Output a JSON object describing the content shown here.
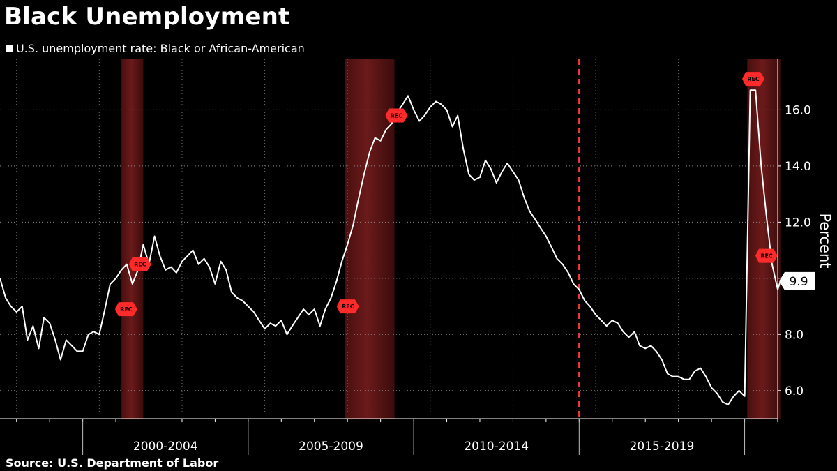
{
  "title": "Black Unemployment",
  "source": "Source: U.S. Department of Labor",
  "chart_data": {
    "type": "line",
    "title": "Black Unemployment",
    "ylabel": "Percent",
    "ylim": [
      5.0,
      17.8
    ],
    "xlim": [
      1997.5,
      2021.0
    ],
    "y_ticks": [
      6.0,
      8.0,
      10.0,
      12.0,
      14.0,
      16.0
    ],
    "y_tick_labels": [
      "6.0",
      "8.0",
      "",
      "12.0",
      "14.0",
      "16.0"
    ],
    "x_tick_years": [
      2000,
      2005,
      2010,
      2015,
      2020
    ],
    "x_period_labels": [
      {
        "label": "2000-2004",
        "x": 2002.5
      },
      {
        "label": "2005-2009",
        "x": 2007.5
      },
      {
        "label": "2010-2014",
        "x": 2012.5
      },
      {
        "label": "2015-2019",
        "x": 2017.5
      }
    ],
    "grid": true,
    "legend": "top-left",
    "colors": {
      "line": "#ffffff",
      "recession": "#b22222",
      "marker": "#ff2a2a",
      "dashed_line": "#ff3333"
    },
    "recessions": [
      {
        "start": 2001.17,
        "end": 2001.83
      },
      {
        "start": 2007.92,
        "end": 2009.42
      },
      {
        "start": 2020.08,
        "end": 2021.08
      }
    ],
    "rec_markers": [
      {
        "x": 2001.25,
        "y": 8.9,
        "label": "REC"
      },
      {
        "x": 2001.67,
        "y": 10.5,
        "label": "REC"
      },
      {
        "x": 2007.95,
        "y": 9.0,
        "label": "REC"
      },
      {
        "x": 2009.42,
        "y": 15.8,
        "label": "REC"
      },
      {
        "x": 2020.2,
        "y": 17.1,
        "label": "REC"
      },
      {
        "x": 2021.0,
        "y": 10.8,
        "label": "REC"
      }
    ],
    "vertical_marker": {
      "x": 2015.0,
      "style": "dashed"
    },
    "last_value": {
      "label": "9.9",
      "value": 9.9
    },
    "series": [
      {
        "name": "U.S. unemployment rate: Black or African-American",
        "x": [
          1997.5,
          1997.67,
          1997.83,
          1998.0,
          1998.17,
          1998.33,
          1998.5,
          1998.67,
          1998.83,
          1999.0,
          1999.17,
          1999.33,
          1999.5,
          1999.67,
          1999.83,
          2000.0,
          2000.17,
          2000.33,
          2000.5,
          2000.67,
          2000.83,
          2001.0,
          2001.17,
          2001.33,
          2001.5,
          2001.67,
          2001.83,
          2002.0,
          2002.17,
          2002.33,
          2002.5,
          2002.67,
          2002.83,
          2003.0,
          2003.17,
          2003.33,
          2003.5,
          2003.67,
          2003.83,
          2004.0,
          2004.17,
          2004.33,
          2004.5,
          2004.67,
          2004.83,
          2005.0,
          2005.17,
          2005.33,
          2005.5,
          2005.67,
          2005.83,
          2006.0,
          2006.17,
          2006.33,
          2006.5,
          2006.67,
          2006.83,
          2007.0,
          2007.17,
          2007.33,
          2007.5,
          2007.67,
          2007.83,
          2008.0,
          2008.17,
          2008.33,
          2008.5,
          2008.67,
          2008.83,
          2009.0,
          2009.17,
          2009.33,
          2009.5,
          2009.67,
          2009.83,
          2010.0,
          2010.17,
          2010.33,
          2010.5,
          2010.67,
          2010.83,
          2011.0,
          2011.17,
          2011.33,
          2011.5,
          2011.67,
          2011.83,
          2012.0,
          2012.17,
          2012.33,
          2012.5,
          2012.67,
          2012.83,
          2013.0,
          2013.17,
          2013.33,
          2013.5,
          2013.67,
          2013.83,
          2014.0,
          2014.17,
          2014.33,
          2014.5,
          2014.67,
          2014.83,
          2015.0,
          2015.17,
          2015.33,
          2015.5,
          2015.67,
          2015.83,
          2016.0,
          2016.17,
          2016.33,
          2016.5,
          2016.67,
          2016.83,
          2017.0,
          2017.17,
          2017.33,
          2017.5,
          2017.67,
          2017.83,
          2018.0,
          2018.17,
          2018.33,
          2018.5,
          2018.67,
          2018.83,
          2019.0,
          2019.17,
          2019.33,
          2019.5,
          2019.67,
          2019.83,
          2020.0,
          2020.17,
          2020.33,
          2020.5,
          2020.67,
          2020.83,
          2021.0,
          2021.08
        ],
        "y": [
          10.0,
          9.3,
          9.0,
          8.8,
          9.0,
          7.8,
          8.3,
          7.5,
          8.6,
          8.4,
          7.8,
          7.1,
          7.8,
          7.6,
          7.4,
          7.4,
          8.0,
          8.1,
          8.0,
          8.9,
          9.8,
          10.0,
          10.3,
          10.5,
          9.8,
          10.3,
          11.2,
          10.5,
          11.5,
          10.8,
          10.3,
          10.4,
          10.2,
          10.6,
          10.8,
          11.0,
          10.5,
          10.7,
          10.4,
          9.8,
          10.6,
          10.3,
          9.5,
          9.3,
          9.2,
          9.0,
          8.8,
          8.5,
          8.2,
          8.4,
          8.3,
          8.5,
          8.0,
          8.3,
          8.6,
          8.9,
          8.7,
          8.9,
          8.3,
          8.9,
          9.3,
          9.9,
          10.6,
          11.2,
          11.9,
          12.8,
          13.7,
          14.5,
          15.0,
          14.9,
          15.3,
          15.5,
          15.9,
          16.2,
          16.5,
          16.0,
          15.6,
          15.8,
          16.1,
          16.3,
          16.2,
          16.0,
          15.4,
          15.8,
          14.6,
          13.7,
          13.5,
          13.6,
          14.2,
          13.9,
          13.4,
          13.8,
          14.1,
          13.8,
          13.5,
          12.9,
          12.4,
          12.1,
          11.8,
          11.5,
          11.1,
          10.7,
          10.5,
          10.2,
          9.8,
          9.6,
          9.2,
          9.0,
          8.7,
          8.5,
          8.3,
          8.5,
          8.4,
          8.1,
          7.9,
          8.1,
          7.6,
          7.5,
          7.6,
          7.4,
          7.1,
          6.6,
          6.5,
          6.5,
          6.4,
          6.4,
          6.7,
          6.8,
          6.5,
          6.1,
          5.9,
          5.6,
          5.5,
          5.8,
          6.0,
          5.8,
          16.7,
          16.7,
          14.0,
          12.1,
          10.5,
          9.6,
          9.9
        ]
      }
    ]
  }
}
